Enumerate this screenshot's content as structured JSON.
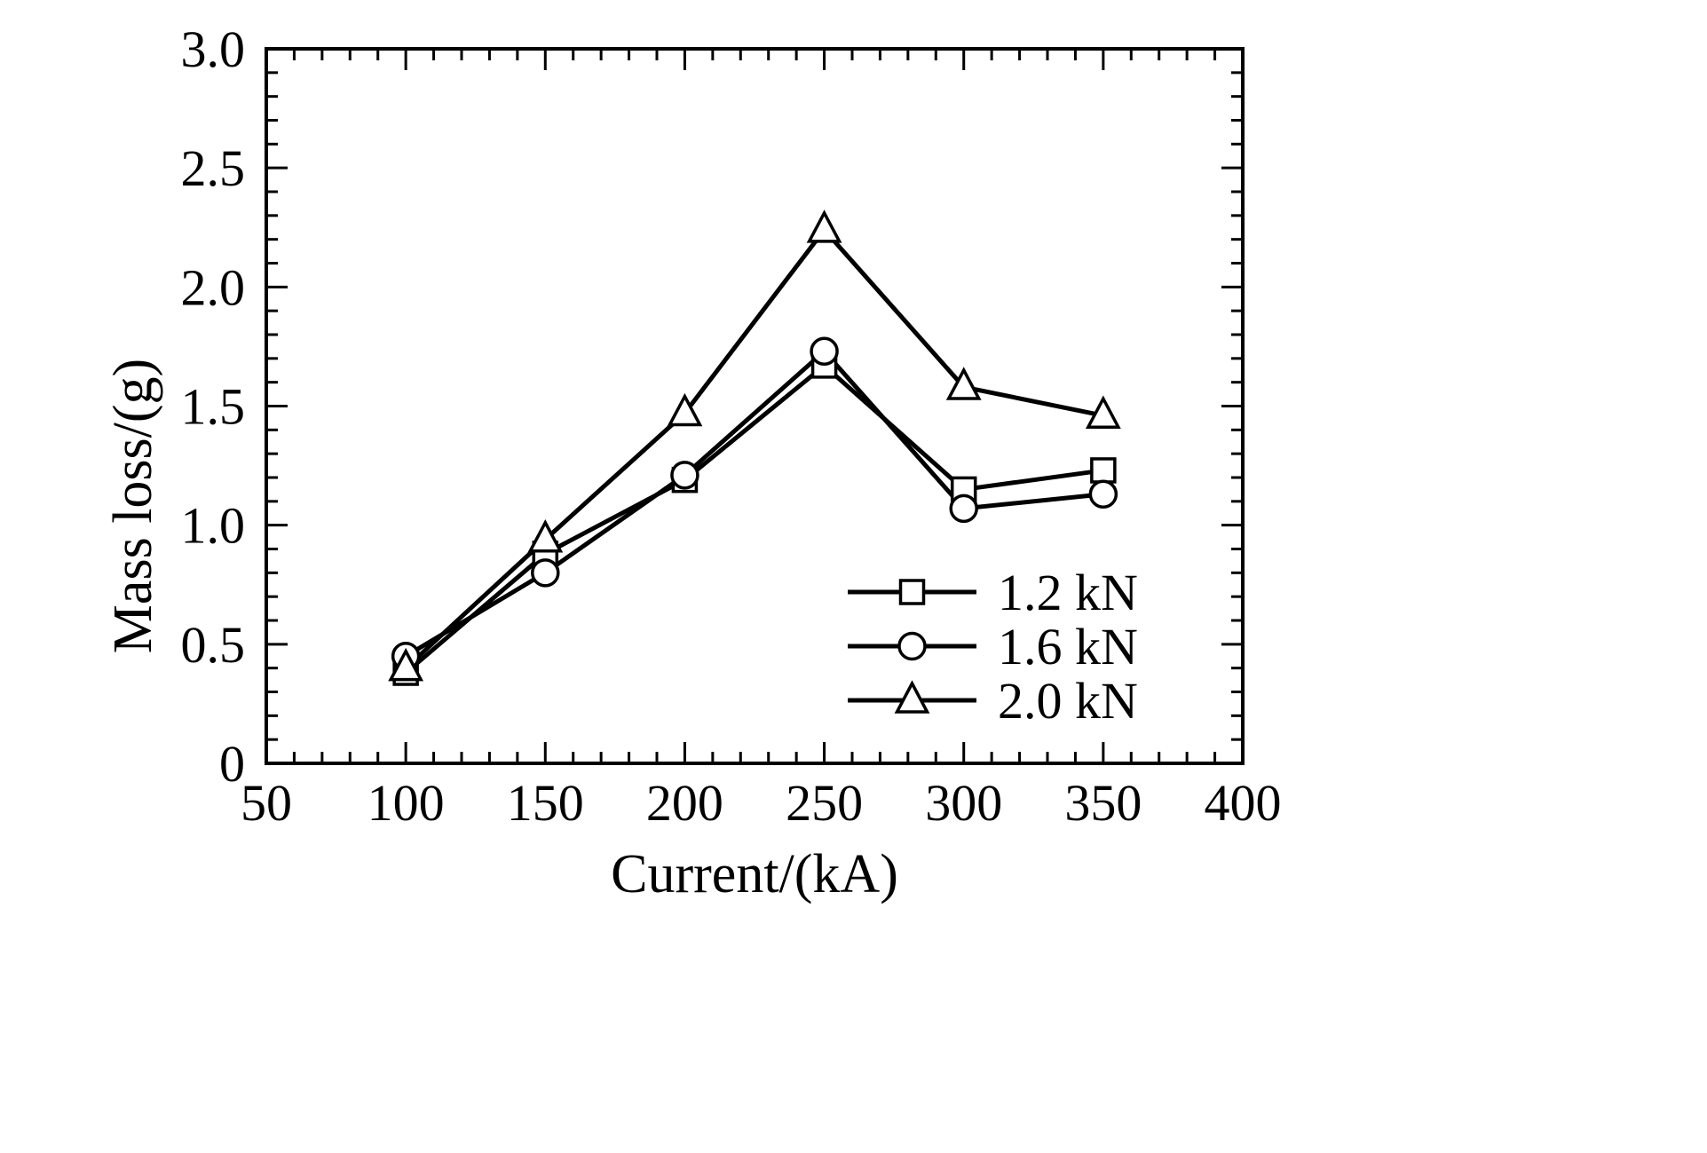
{
  "chart_data": {
    "type": "line",
    "title": "",
    "xlabel": "Current/(kA)",
    "ylabel": "Mass loss/(g)",
    "xlim": [
      50,
      400
    ],
    "ylim": [
      0,
      3.0
    ],
    "x_major_ticks": [
      50,
      100,
      150,
      200,
      250,
      300,
      350,
      400
    ],
    "x_tick_labels": [
      "50",
      "100",
      "150",
      "200",
      "250",
      "300",
      "350",
      "400"
    ],
    "x_minor_step": 10,
    "y_major_ticks": [
      0,
      0.5,
      1.0,
      1.5,
      2.0,
      2.5,
      3.0
    ],
    "y_tick_labels": [
      "0",
      "0.5",
      "1.0",
      "1.5",
      "2.0",
      "2.5",
      "3.0"
    ],
    "y_minor_step": 0.1,
    "x": [
      100,
      150,
      200,
      250,
      300,
      350
    ],
    "series": [
      {
        "name": "1.2 kN",
        "marker": "square",
        "values": [
          0.38,
          0.88,
          1.19,
          1.67,
          1.15,
          1.23
        ]
      },
      {
        "name": "1.6 kN",
        "marker": "circle",
        "values": [
          0.45,
          0.8,
          1.21,
          1.73,
          1.07,
          1.13
        ]
      },
      {
        "name": "2.0 kN",
        "marker": "triangle",
        "values": [
          0.4,
          0.94,
          1.47,
          2.24,
          1.58,
          1.46
        ]
      }
    ],
    "legend_position": "inside lower right",
    "grid": false,
    "colors": {
      "line": "#000000",
      "marker_fill": "#ffffff",
      "background": "#ffffff"
    }
  }
}
